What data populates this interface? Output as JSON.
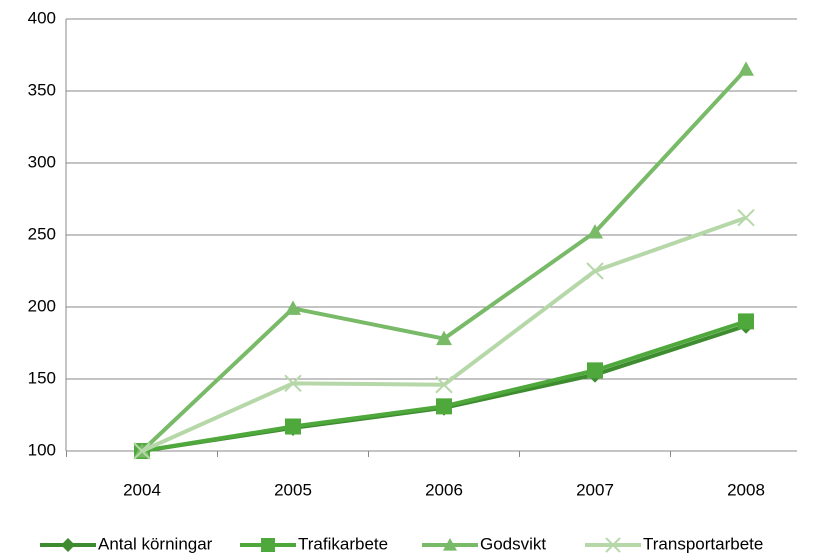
{
  "chart_data": {
    "type": "line",
    "categories": [
      "2004",
      "2005",
      "2006",
      "2007",
      "2008"
    ],
    "series": [
      {
        "name": "Antal körningar",
        "color": "#3d8c2f",
        "marker": "diamond",
        "values": [
          100,
          116,
          130,
          153,
          187
        ]
      },
      {
        "name": "Trafikarbete",
        "color": "#4fa83b",
        "marker": "square",
        "values": [
          100,
          117,
          131,
          156,
          190
        ]
      },
      {
        "name": "Godsvikt",
        "color": "#79ba68",
        "marker": "triangle",
        "values": [
          100,
          199,
          178,
          252,
          365
        ]
      },
      {
        "name": "Transportarbete",
        "color": "#b6d8a9",
        "marker": "x",
        "values": [
          100,
          147,
          146,
          225,
          262
        ]
      }
    ],
    "ylim": [
      100,
      400
    ],
    "yticks": [
      100,
      150,
      200,
      250,
      300,
      350,
      400
    ],
    "grid": true,
    "legend": "bottom"
  }
}
